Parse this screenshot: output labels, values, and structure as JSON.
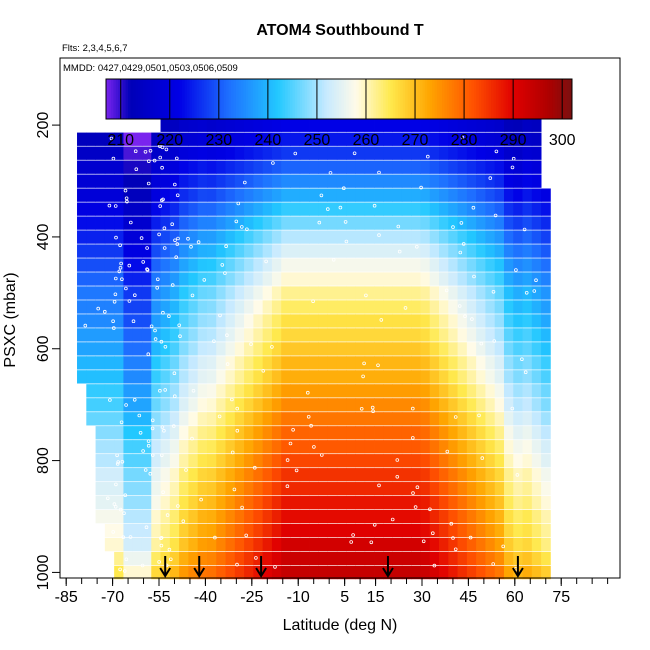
{
  "chart_data": {
    "type": "heatmap",
    "title": "ATOM4 Southbound T",
    "subtitle_flights": "Flts: 2,3,4,5,6,7",
    "subtitle_dates": "MMDD: 0427,0429,0501,0503,0506,0509",
    "xlabel": "Latitude (deg N)",
    "ylabel": "PSXC (mbar)",
    "xlim": [
      -87,
      94
    ],
    "ylim": [
      1010,
      80
    ],
    "x_ticks": [
      -85,
      -70,
      -55,
      -40,
      -25,
      -10,
      5,
      15,
      30,
      45,
      60,
      75
    ],
    "x_tick_labels": [
      "-85",
      "-70",
      "-55",
      "-40",
      "-25",
      "-10",
      "5",
      "15",
      "30",
      "45",
      "60",
      "75"
    ],
    "y_ticks": [
      200,
      400,
      600,
      800,
      1000
    ],
    "y_tick_labels": [
      "200",
      "400",
      "600",
      "800",
      "1000"
    ],
    "colorbar": {
      "min": 207,
      "max": 302,
      "ticks": [
        210,
        220,
        230,
        240,
        250,
        260,
        270,
        280,
        290,
        300
      ],
      "tick_labels": [
        "210",
        "220",
        "230",
        "240",
        "250",
        "260",
        "270",
        "280",
        "290",
        "300"
      ],
      "stops": [
        {
          "v": 207,
          "c": "#7a24ee"
        },
        {
          "v": 212,
          "c": "#0000b8"
        },
        {
          "v": 222,
          "c": "#0000e6"
        },
        {
          "v": 232,
          "c": "#1e6fff"
        },
        {
          "v": 242,
          "c": "#22c8ff"
        },
        {
          "v": 252,
          "c": "#c8eaff"
        },
        {
          "v": 258,
          "c": "#fffbe8"
        },
        {
          "v": 265,
          "c": "#ffe94d"
        },
        {
          "v": 273,
          "c": "#ffa500"
        },
        {
          "v": 282,
          "c": "#ff5000"
        },
        {
          "v": 290,
          "c": "#e00000"
        },
        {
          "v": 297,
          "c": "#b00000"
        },
        {
          "v": 302,
          "c": "#7a1010"
        }
      ]
    },
    "field": {
      "lat_start": -83,
      "lat_step": 3,
      "lat_count": 52,
      "levels": [
        {
          "p": 200,
          "lat_min": -55,
          "lat_max": 67,
          "t_trop": 222,
          "t_pole": 212
        },
        {
          "p": 225,
          "lat_min": -82,
          "lat_max": 67,
          "t_trop": 224,
          "t_pole": 213
        },
        {
          "p": 250,
          "lat_min": -82,
          "lat_max": 67,
          "t_trop": 227,
          "t_pole": 215
        },
        {
          "p": 275,
          "lat_min": -82,
          "lat_max": 68,
          "t_trop": 231,
          "t_pole": 217
        },
        {
          "p": 300,
          "lat_min": -82,
          "lat_max": 69,
          "t_trop": 235,
          "t_pole": 218
        },
        {
          "p": 325,
          "lat_min": -82,
          "lat_max": 70,
          "t_trop": 239,
          "t_pole": 219
        },
        {
          "p": 350,
          "lat_min": -82,
          "lat_max": 70,
          "t_trop": 243,
          "t_pole": 221
        },
        {
          "p": 375,
          "lat_min": -82,
          "lat_max": 70,
          "t_trop": 247,
          "t_pole": 223
        },
        {
          "p": 400,
          "lat_min": -82,
          "lat_max": 71,
          "t_trop": 251,
          "t_pole": 225
        },
        {
          "p": 425,
          "lat_min": -82,
          "lat_max": 71,
          "t_trop": 254,
          "t_pole": 227
        },
        {
          "p": 450,
          "lat_min": -82,
          "lat_max": 71,
          "t_trop": 257,
          "t_pole": 229
        },
        {
          "p": 475,
          "lat_min": -82,
          "lat_max": 71,
          "t_trop": 259,
          "t_pole": 231
        },
        {
          "p": 500,
          "lat_min": -82,
          "lat_max": 71,
          "t_trop": 262,
          "t_pole": 233
        },
        {
          "p": 525,
          "lat_min": -82,
          "lat_max": 71,
          "t_trop": 264,
          "t_pole": 234
        },
        {
          "p": 550,
          "lat_min": -82,
          "lat_max": 71,
          "t_trop": 266,
          "t_pole": 235
        },
        {
          "p": 575,
          "lat_min": -82,
          "lat_max": 71,
          "t_trop": 267,
          "t_pole": 237
        },
        {
          "p": 600,
          "lat_min": -82,
          "lat_max": 71,
          "t_trop": 269,
          "t_pole": 238
        },
        {
          "p": 625,
          "lat_min": -81,
          "lat_max": 71,
          "t_trop": 271,
          "t_pole": 240
        },
        {
          "p": 650,
          "lat_min": -80,
          "lat_max": 71,
          "t_trop": 272,
          "t_pole": 241
        },
        {
          "p": 675,
          "lat_min": -79,
          "lat_max": 71,
          "t_trop": 274,
          "t_pole": 243
        },
        {
          "p": 700,
          "lat_min": -78,
          "lat_max": 71,
          "t_trop": 276,
          "t_pole": 244
        },
        {
          "p": 725,
          "lat_min": -77,
          "lat_max": 71,
          "t_trop": 278,
          "t_pole": 246
        },
        {
          "p": 750,
          "lat_min": -76,
          "lat_max": 72,
          "t_trop": 280,
          "t_pole": 248
        },
        {
          "p": 775,
          "lat_min": -76,
          "lat_max": 72,
          "t_trop": 281,
          "t_pole": 250
        },
        {
          "p": 800,
          "lat_min": -75,
          "lat_max": 72,
          "t_trop": 283,
          "t_pole": 251
        },
        {
          "p": 825,
          "lat_min": -75,
          "lat_max": 72,
          "t_trop": 285,
          "t_pole": 253
        },
        {
          "p": 850,
          "lat_min": -74,
          "lat_max": 72,
          "t_trop": 286,
          "t_pole": 254
        },
        {
          "p": 875,
          "lat_min": -74,
          "lat_max": 72,
          "t_trop": 288,
          "t_pole": 255
        },
        {
          "p": 900,
          "lat_min": -74,
          "lat_max": 72,
          "t_trop": 289,
          "t_pole": 257
        },
        {
          "p": 925,
          "lat_min": -73,
          "lat_max": 72,
          "t_trop": 290,
          "t_pole": 258
        },
        {
          "p": 950,
          "lat_min": -73,
          "lat_max": 72,
          "t_trop": 292,
          "t_pole": 259
        },
        {
          "p": 975,
          "lat_min": -70,
          "lat_max": 72,
          "t_trop": 293,
          "t_pole": 262
        },
        {
          "p": 1000,
          "lat_min": -68,
          "lat_max": 72,
          "t_trop": 294,
          "t_pole": 265
        }
      ]
    },
    "arrows_lat": [
      -53,
      -42,
      -22,
      19,
      61
    ]
  }
}
